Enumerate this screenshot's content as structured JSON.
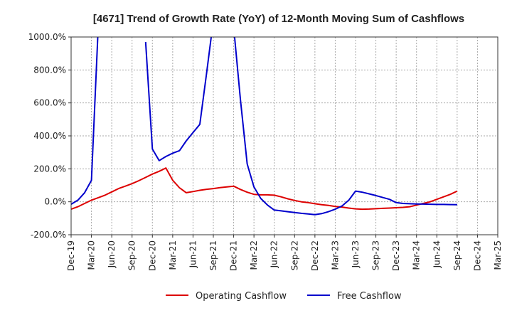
{
  "chart_data": {
    "type": "line",
    "title": "[4671]  Trend of Growth Rate (YoY) of 12-Month Moving Sum of Cashflows",
    "xlabel": "",
    "ylabel": "",
    "ylim": [
      -200,
      1000
    ],
    "yticks": [
      -200,
      0,
      200,
      400,
      600,
      800,
      1000
    ],
    "ytick_labels": [
      "-200.0%",
      "0.0%",
      "200.0%",
      "400.0%",
      "600.0%",
      "800.0%",
      "1000.0%"
    ],
    "xticks": [
      "Dec-19",
      "Mar-20",
      "Jun-20",
      "Sep-20",
      "Dec-20",
      "Mar-21",
      "Jun-21",
      "Sep-21",
      "Dec-21",
      "Mar-22",
      "Jun-22",
      "Sep-22",
      "Dec-22",
      "Mar-23",
      "Jun-23",
      "Sep-23",
      "Dec-23",
      "Mar-24",
      "Jun-24",
      "Sep-24",
      "Dec-24",
      "Mar-25"
    ],
    "x_unit": "months since Dec-19",
    "grid": true,
    "legend_position": "bottom",
    "series": [
      {
        "name": "Operating Cashflow",
        "color": "#dd0000",
        "points": [
          [
            0,
            -45
          ],
          [
            1,
            -30
          ],
          [
            2,
            -10
          ],
          [
            3,
            10
          ],
          [
            4,
            25
          ],
          [
            5,
            40
          ],
          [
            6,
            60
          ],
          [
            7,
            80
          ],
          [
            8,
            95
          ],
          [
            9,
            110
          ],
          [
            10,
            128
          ],
          [
            11,
            148
          ],
          [
            12,
            168
          ],
          [
            13,
            185
          ],
          [
            14,
            205
          ],
          [
            15,
            130
          ],
          [
            16,
            85
          ],
          [
            17,
            55
          ],
          [
            18,
            62
          ],
          [
            19,
            70
          ],
          [
            20,
            76
          ],
          [
            21,
            80
          ],
          [
            22,
            86
          ],
          [
            23,
            90
          ],
          [
            24,
            95
          ],
          [
            25,
            75
          ],
          [
            26,
            58
          ],
          [
            27,
            45
          ],
          [
            28,
            42
          ],
          [
            29,
            42
          ],
          [
            30,
            40
          ],
          [
            31,
            30
          ],
          [
            32,
            18
          ],
          [
            33,
            8
          ],
          [
            34,
            0
          ],
          [
            35,
            -5
          ],
          [
            36,
            -12
          ],
          [
            37,
            -18
          ],
          [
            38,
            -22
          ],
          [
            39,
            -28
          ],
          [
            40,
            -32
          ],
          [
            41,
            -38
          ],
          [
            42,
            -43
          ],
          [
            43,
            -45
          ],
          [
            44,
            -44
          ],
          [
            45,
            -42
          ],
          [
            46,
            -40
          ],
          [
            47,
            -38
          ],
          [
            48,
            -36
          ],
          [
            49,
            -34
          ],
          [
            50,
            -30
          ],
          [
            51,
            -20
          ],
          [
            52,
            -10
          ],
          [
            53,
            0
          ],
          [
            54,
            15
          ],
          [
            55,
            30
          ],
          [
            56,
            45
          ],
          [
            57,
            65
          ]
        ]
      },
      {
        "name": "Free Cashflow",
        "color": "#0000cc",
        "segments": [
          [
            [
              0,
              -15
            ],
            [
              1,
              10
            ],
            [
              2,
              55
            ],
            [
              3,
              130
            ],
            [
              4,
              1060
            ]
          ],
          [
            [
              11,
              970
            ],
            [
              12,
              320
            ],
            [
              13,
              250
            ],
            [
              14,
              275
            ],
            [
              15,
              295
            ],
            [
              16,
              310
            ],
            [
              17,
              370
            ],
            [
              18,
              420
            ],
            [
              19,
              470
            ],
            [
              20,
              780
            ],
            [
              21,
              1100
            ]
          ],
          [
            [
              24,
              1060
            ],
            [
              25,
              620
            ],
            [
              26,
              230
            ],
            [
              27,
              90
            ],
            [
              28,
              20
            ],
            [
              29,
              -20
            ],
            [
              30,
              -50
            ],
            [
              31,
              -55
            ],
            [
              32,
              -60
            ],
            [
              33,
              -65
            ],
            [
              34,
              -70
            ],
            [
              35,
              -74
            ],
            [
              36,
              -78
            ],
            [
              37,
              -72
            ],
            [
              38,
              -60
            ],
            [
              39,
              -45
            ],
            [
              40,
              -25
            ],
            [
              41,
              10
            ],
            [
              42,
              65
            ],
            [
              43,
              58
            ],
            [
              44,
              48
            ],
            [
              45,
              38
            ],
            [
              46,
              26
            ],
            [
              47,
              15
            ],
            [
              48,
              -5
            ],
            [
              49,
              -10
            ],
            [
              50,
              -12
            ],
            [
              51,
              -13
            ],
            [
              52,
              -14
            ],
            [
              53,
              -15
            ],
            [
              54,
              -16
            ],
            [
              55,
              -16
            ],
            [
              56,
              -17
            ],
            [
              57,
              -18
            ]
          ]
        ]
      }
    ]
  }
}
